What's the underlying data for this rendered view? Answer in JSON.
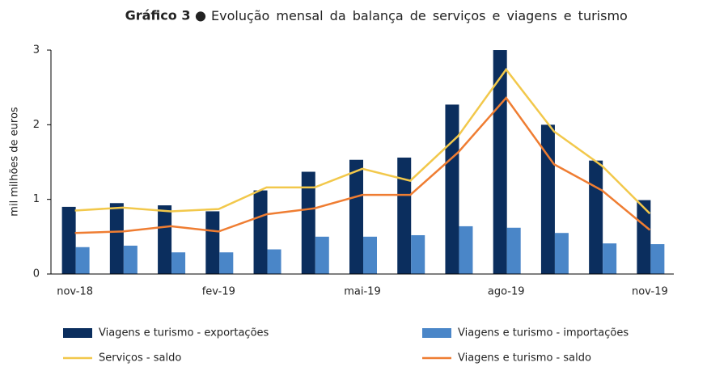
{
  "chart_data": {
    "type": "bar",
    "title_label": "Gráfico 3 ●",
    "title": "Evolução mensal da balança de serviços e viagens e turismo",
    "y_label": "mil milhões de euros",
    "categories": [
      "nov-18",
      null,
      null,
      "fev-19",
      null,
      null,
      "mai-19",
      null,
      null,
      "ago-19",
      null,
      null,
      "nov-19"
    ],
    "series": [
      {
        "name": "Viagens e turismo - exportações",
        "type": "bar",
        "color": "#0b2e5e",
        "values": [
          0.9,
          0.95,
          0.92,
          0.84,
          1.12,
          1.37,
          1.53,
          1.56,
          2.27,
          3.0,
          2.0,
          1.52,
          0.99
        ]
      },
      {
        "name": "Viagens e turismo - importações",
        "type": "bar",
        "color": "#4a86c8",
        "values": [
          0.36,
          0.38,
          0.29,
          0.29,
          0.33,
          0.5,
          0.5,
          0.52,
          0.64,
          0.62,
          0.55,
          0.41,
          0.4
        ]
      },
      {
        "name": "Serviços - saldo",
        "type": "line",
        "color": "#f2c84b",
        "values": [
          0.85,
          0.89,
          0.84,
          0.87,
          1.16,
          1.16,
          1.41,
          1.25,
          1.85,
          2.74,
          1.91,
          1.45,
          0.81
        ]
      },
      {
        "name": "Viagens e turismo - saldo",
        "type": "line",
        "color": "#ef7d32",
        "values": [
          0.55,
          0.57,
          0.64,
          0.57,
          0.8,
          0.88,
          1.06,
          1.06,
          1.63,
          2.36,
          1.47,
          1.12,
          0.59
        ]
      }
    ],
    "ylim": [
      0,
      3
    ],
    "yticks": [
      0,
      1,
      2,
      3
    ],
    "grid": false
  }
}
